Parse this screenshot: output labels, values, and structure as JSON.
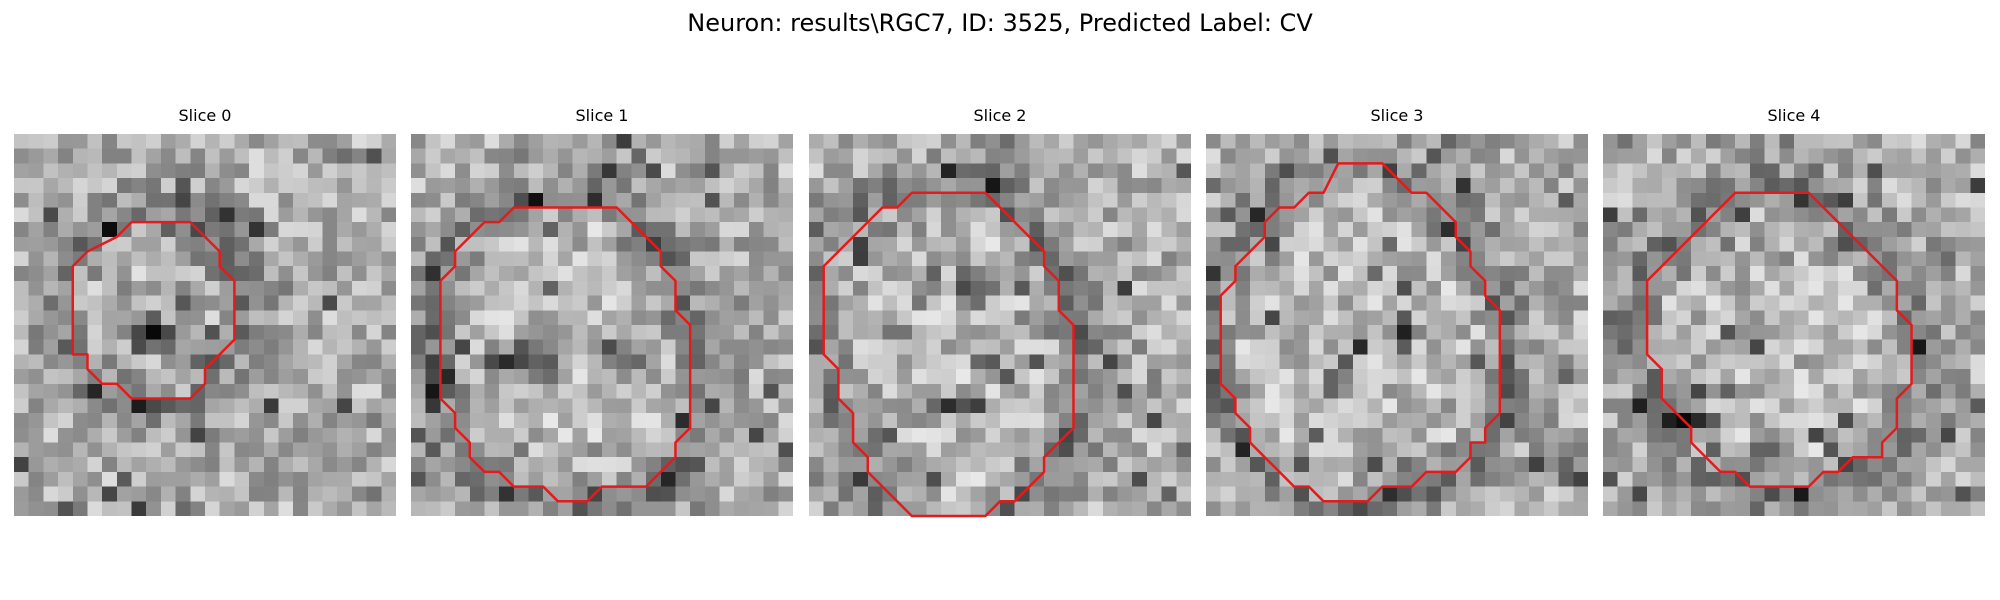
{
  "figure": {
    "title": "Neuron: results\\RGC7, ID: 3525, Predicted Label: CV"
  },
  "colors": {
    "background": "#ffffff",
    "contour": "#e41a1c"
  },
  "slices": [
    {
      "title": "Slice 0",
      "contour": [
        [
          9,
          6
        ],
        [
          12,
          6
        ],
        [
          14,
          8
        ],
        [
          14,
          9
        ],
        [
          15,
          10
        ],
        [
          15,
          14
        ],
        [
          14,
          15
        ],
        [
          13,
          16
        ],
        [
          13,
          17
        ],
        [
          12,
          18
        ],
        [
          8,
          18
        ],
        [
          7,
          17
        ],
        [
          6,
          17
        ],
        [
          5,
          16
        ],
        [
          5,
          15
        ],
        [
          4,
          15
        ],
        [
          4,
          9
        ],
        [
          5,
          8
        ],
        [
          7,
          7
        ],
        [
          8,
          6
        ]
      ]
    },
    {
      "title": "Slice 1",
      "contour": [
        [
          7,
          5
        ],
        [
          14,
          5
        ],
        [
          17,
          8
        ],
        [
          17,
          9
        ],
        [
          18,
          10
        ],
        [
          18,
          12
        ],
        [
          19,
          13
        ],
        [
          19,
          20
        ],
        [
          18,
          21
        ],
        [
          18,
          22
        ],
        [
          17,
          23
        ],
        [
          16,
          24
        ],
        [
          13,
          24
        ],
        [
          12,
          25
        ],
        [
          10,
          25
        ],
        [
          9,
          24
        ],
        [
          7,
          24
        ],
        [
          6,
          23
        ],
        [
          5,
          23
        ],
        [
          4,
          22
        ],
        [
          4,
          21
        ],
        [
          3,
          20
        ],
        [
          3,
          19
        ],
        [
          2,
          18
        ],
        [
          2,
          10
        ],
        [
          3,
          9
        ],
        [
          3,
          8
        ],
        [
          4,
          7
        ],
        [
          5,
          6
        ],
        [
          6,
          6
        ]
      ]
    },
    {
      "title": "Slice 2",
      "contour": [
        [
          7,
          4
        ],
        [
          12,
          4
        ],
        [
          13,
          5
        ],
        [
          14,
          6
        ],
        [
          15,
          7
        ],
        [
          16,
          8
        ],
        [
          16,
          9
        ],
        [
          17,
          10
        ],
        [
          17,
          12
        ],
        [
          18,
          13
        ],
        [
          18,
          20
        ],
        [
          17,
          21
        ],
        [
          16,
          22
        ],
        [
          16,
          23
        ],
        [
          15,
          24
        ],
        [
          14,
          25
        ],
        [
          13,
          25
        ],
        [
          12,
          26
        ],
        [
          7,
          26
        ],
        [
          6,
          25
        ],
        [
          5,
          24
        ],
        [
          4,
          23
        ],
        [
          4,
          22
        ],
        [
          3,
          21
        ],
        [
          3,
          19
        ],
        [
          2,
          18
        ],
        [
          2,
          16
        ],
        [
          1,
          15
        ],
        [
          1,
          9
        ],
        [
          2,
          8
        ],
        [
          3,
          7
        ],
        [
          4,
          6
        ],
        [
          5,
          5
        ],
        [
          6,
          5
        ]
      ]
    },
    {
      "title": "Slice 3",
      "contour": [
        [
          9,
          2
        ],
        [
          12,
          2
        ],
        [
          13,
          3
        ],
        [
          14,
          4
        ],
        [
          15,
          4
        ],
        [
          16,
          5
        ],
        [
          17,
          6
        ],
        [
          17,
          7
        ],
        [
          18,
          8
        ],
        [
          18,
          9
        ],
        [
          19,
          10
        ],
        [
          19,
          11
        ],
        [
          20,
          12
        ],
        [
          20,
          19
        ],
        [
          19,
          20
        ],
        [
          19,
          21
        ],
        [
          18,
          21
        ],
        [
          18,
          22
        ],
        [
          17,
          23
        ],
        [
          15,
          23
        ],
        [
          14,
          24
        ],
        [
          12,
          24
        ],
        [
          11,
          25
        ],
        [
          8,
          25
        ],
        [
          7,
          24
        ],
        [
          6,
          24
        ],
        [
          5,
          23
        ],
        [
          4,
          22
        ],
        [
          3,
          21
        ],
        [
          3,
          20
        ],
        [
          2,
          19
        ],
        [
          2,
          18
        ],
        [
          1,
          17
        ],
        [
          1,
          11
        ],
        [
          2,
          10
        ],
        [
          2,
          9
        ],
        [
          3,
          8
        ],
        [
          4,
          7
        ],
        [
          4,
          6
        ],
        [
          5,
          5
        ],
        [
          6,
          5
        ],
        [
          7,
          4
        ],
        [
          8,
          4
        ]
      ]
    },
    {
      "title": "Slice 4",
      "contour": [
        [
          9,
          4
        ],
        [
          14,
          4
        ],
        [
          15,
          5
        ],
        [
          16,
          6
        ],
        [
          17,
          7
        ],
        [
          18,
          8
        ],
        [
          19,
          9
        ],
        [
          20,
          10
        ],
        [
          20,
          12
        ],
        [
          21,
          13
        ],
        [
          21,
          17
        ],
        [
          20,
          18
        ],
        [
          20,
          20
        ],
        [
          19,
          21
        ],
        [
          19,
          22
        ],
        [
          17,
          22
        ],
        [
          16,
          23
        ],
        [
          15,
          23
        ],
        [
          14,
          24
        ],
        [
          10,
          24
        ],
        [
          9,
          23
        ],
        [
          8,
          23
        ],
        [
          7,
          22
        ],
        [
          6,
          21
        ],
        [
          6,
          20
        ],
        [
          5,
          19
        ],
        [
          4,
          18
        ],
        [
          4,
          16
        ],
        [
          3,
          15
        ],
        [
          3,
          10
        ],
        [
          4,
          9
        ],
        [
          5,
          8
        ],
        [
          6,
          7
        ],
        [
          7,
          6
        ],
        [
          8,
          5
        ]
      ]
    }
  ]
}
